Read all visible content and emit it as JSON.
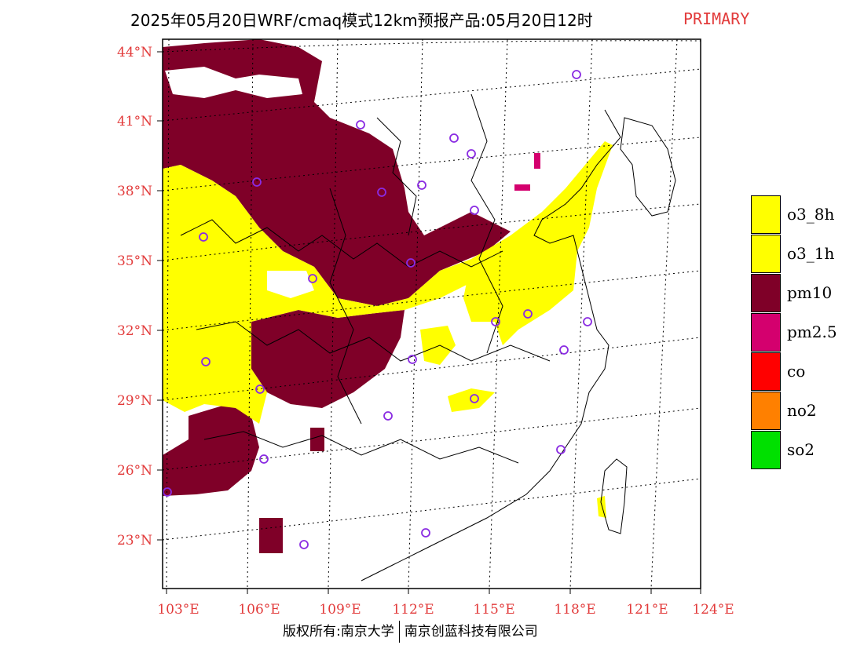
{
  "title": {
    "text": "2025年05月20日WRF/cmaq模式12km预报产品:05月20日12时",
    "tag": "PRIMARY",
    "tag_color": "#e23b3b"
  },
  "map": {
    "projection": "Lambert conformal",
    "lat_ticks": [
      "44°N",
      "41°N",
      "38°N",
      "35°N",
      "32°N",
      "29°N",
      "26°N",
      "23°N"
    ],
    "lon_ticks": [
      "103°E",
      "106°E",
      "109°E",
      "112°E",
      "115°E",
      "118°E",
      "121°E",
      "124°E"
    ],
    "gridlines": "dotted",
    "label_color": "#e23b3b",
    "regions": [
      {
        "name": "north-pm10",
        "pollutant": "pm10"
      },
      {
        "name": "central-pm10",
        "pollutant": "pm10"
      },
      {
        "name": "southwest-pm10",
        "pollutant": "pm10"
      },
      {
        "name": "west-o3",
        "pollutant": "o3_8h"
      },
      {
        "name": "east-o3",
        "pollutant": "o3_8h"
      },
      {
        "name": "bohai-pm25",
        "pollutant": "pm2.5"
      },
      {
        "name": "taiwan-o3",
        "pollutant": "o3_8h"
      }
    ],
    "station_marker_color": "#8a2be2"
  },
  "legend": {
    "items": [
      {
        "label": "o3_8h",
        "color": "#ffff00"
      },
      {
        "label": "o3_1h",
        "color": "#ffff00"
      },
      {
        "label": "pm10",
        "color": "#7f0028"
      },
      {
        "label": "pm2.5",
        "color": "#d4006e"
      },
      {
        "label": "co",
        "color": "#ff0000"
      },
      {
        "label": "no2",
        "color": "#ff8000"
      },
      {
        "label": "so2",
        "color": "#00e000"
      }
    ]
  },
  "copyright": {
    "left": "版权所有:南京大学",
    "right": "南京创蓝科技有限公司"
  }
}
